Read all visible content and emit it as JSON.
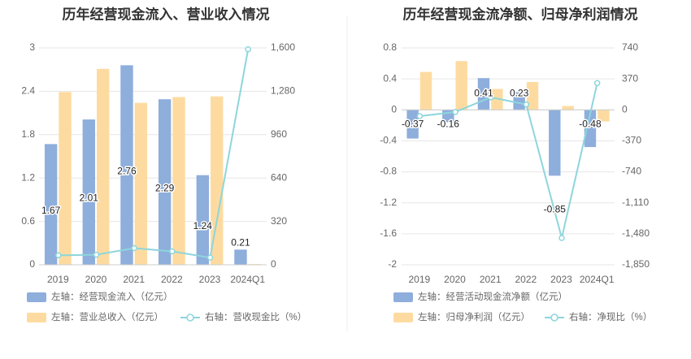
{
  "charts": [
    {
      "id": "left",
      "chart_data": {
        "type": "bar",
        "title": "历年经营现金流入、营业收入情况",
        "categories": [
          "2019",
          "2020",
          "2021",
          "2022",
          "2023",
          "2024Q1"
        ],
        "series": [
          {
            "name": "左轴：经营现金流入（亿元）",
            "type": "bar",
            "axis": "left",
            "color": "#8eaedc",
            "values": [
              1.67,
              2.01,
              2.76,
              2.29,
              1.24,
              0.21
            ],
            "labels": [
              "1.67",
              "2.01",
              "2.76",
              "2.29",
              "1.24",
              "0.21"
            ]
          },
          {
            "name": "左轴：营业总收入（亿元）",
            "type": "bar",
            "axis": "left",
            "color": "#fddba0",
            "values": [
              2.39,
              2.71,
              2.24,
              2.32,
              2.33,
              0.01
            ]
          },
          {
            "name": "右轴：营收现金比（%）",
            "type": "line",
            "axis": "right",
            "color": "#8dd6dc",
            "values": [
              70,
              74,
              123,
              99,
              53,
              1590
            ]
          }
        ],
        "left_axis": {
          "min": 0,
          "max": 3,
          "ticks": [
            "0",
            "0.6",
            "1.2",
            "1.8",
            "2.4",
            "3"
          ]
        },
        "right_axis": {
          "min": 0,
          "max": 1600,
          "ticks": [
            "0",
            "320",
            "640",
            "960",
            "1,280",
            "1,600"
          ]
        },
        "grid": true,
        "legend_position": "bottom"
      }
    },
    {
      "id": "right",
      "chart_data": {
        "type": "bar",
        "title": "历年经营现金流净额、归母净利润情况",
        "categories": [
          "2019",
          "2020",
          "2021",
          "2022",
          "2023",
          "2024Q1"
        ],
        "series": [
          {
            "name": "左轴：经营活动现金流净额（亿元）",
            "type": "bar",
            "axis": "left",
            "color": "#8eaedc",
            "values": [
              -0.37,
              -0.16,
              0.41,
              0.23,
              -0.85,
              -0.48
            ],
            "labels": [
              "-0.37",
              "-0.16",
              "0.41",
              "0.23",
              "-0.85",
              "-0.48"
            ]
          },
          {
            "name": "左轴：归母净利润（亿元）",
            "type": "bar",
            "axis": "left",
            "color": "#fddba0",
            "values": [
              0.49,
              0.63,
              0.27,
              0.36,
              0.05,
              -0.15
            ]
          },
          {
            "name": "右轴：净现比（%）",
            "type": "line",
            "axis": "right",
            "color": "#8dd6dc",
            "values": [
              -75,
              -25,
              150,
              65,
              -1530,
              320
            ]
          }
        ],
        "left_axis": {
          "min": -2,
          "max": 0.8,
          "ticks": [
            "-2",
            "-1.6",
            "-1.2",
            "-0.8",
            "-0.4",
            "0",
            "0.4",
            "0.8"
          ]
        },
        "right_axis": {
          "min": -1850,
          "max": 740,
          "ticks": [
            "-1,850",
            "-1,480",
            "-1,110",
            "-740",
            "-370",
            "0",
            "370",
            "740"
          ]
        },
        "grid": true,
        "legend_position": "bottom"
      }
    }
  ]
}
